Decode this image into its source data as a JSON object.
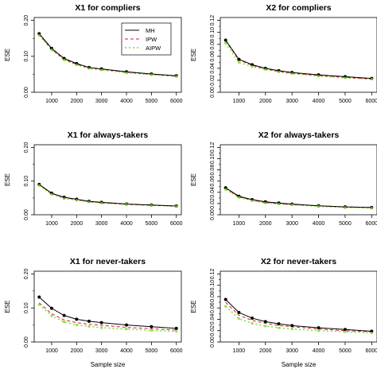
{
  "chart_data": [
    {
      "type": "line",
      "title": "X1 for compliers",
      "xlabel": "",
      "ylabel": "ESE",
      "x": [
        500,
        1000,
        1500,
        2000,
        2500,
        3000,
        4000,
        5000,
        6000
      ],
      "xticks": [
        1000,
        2000,
        3000,
        4000,
        5000,
        6000
      ],
      "ylim": [
        0,
        0.2
      ],
      "yticks": [
        "0.00",
        "0.10",
        "0.20"
      ],
      "series": [
        {
          "name": "MH",
          "values": [
            0.163,
            0.122,
            0.094,
            0.08,
            0.069,
            0.065,
            0.057,
            0.051,
            0.046
          ]
        },
        {
          "name": "IPW",
          "values": [
            0.161,
            0.12,
            0.092,
            0.078,
            0.068,
            0.064,
            0.056,
            0.05,
            0.045
          ]
        },
        {
          "name": "AIPW",
          "values": [
            0.158,
            0.118,
            0.09,
            0.076,
            0.066,
            0.062,
            0.054,
            0.049,
            0.044
          ]
        }
      ],
      "legend": [
        "MH",
        "IPW",
        "AIPW"
      ]
    },
    {
      "type": "line",
      "title": "X2 for compliers",
      "xlabel": "",
      "ylabel": "ESE",
      "x": [
        500,
        1000,
        1500,
        2000,
        2500,
        3000,
        4000,
        5000,
        6000
      ],
      "xticks": [
        1000,
        2000,
        3000,
        4000,
        5000,
        6000
      ],
      "ylim": [
        0,
        0.12
      ],
      "yticks": [
        "0.00",
        "0.02",
        "0.04",
        "0.06",
        "0.08",
        "0.10",
        "0.12"
      ],
      "series": [
        {
          "name": "MH",
          "values": [
            0.087,
            0.055,
            0.046,
            0.04,
            0.036,
            0.033,
            0.029,
            0.026,
            0.023
          ]
        },
        {
          "name": "IPW",
          "values": [
            0.086,
            0.054,
            0.045,
            0.039,
            0.035,
            0.032,
            0.028,
            0.025,
            0.022
          ]
        },
        {
          "name": "AIPW",
          "values": [
            0.082,
            0.05,
            0.043,
            0.038,
            0.034,
            0.031,
            0.027,
            0.024,
            0.022
          ]
        }
      ]
    },
    {
      "type": "line",
      "title": "X1 for always-takers",
      "xlabel": "",
      "ylabel": "ESE",
      "x": [
        500,
        1000,
        1500,
        2000,
        2500,
        3000,
        4000,
        5000,
        6000
      ],
      "xticks": [
        1000,
        2000,
        3000,
        4000,
        5000,
        6000
      ],
      "ylim": [
        0,
        0.2
      ],
      "yticks": [
        "0.00",
        "0.10",
        "0.20"
      ],
      "series": [
        {
          "name": "MH",
          "values": [
            0.09,
            0.064,
            0.052,
            0.046,
            0.04,
            0.037,
            0.032,
            0.029,
            0.026
          ]
        },
        {
          "name": "IPW",
          "values": [
            0.089,
            0.063,
            0.051,
            0.045,
            0.039,
            0.036,
            0.031,
            0.028,
            0.026
          ]
        },
        {
          "name": "AIPW",
          "values": [
            0.087,
            0.061,
            0.048,
            0.043,
            0.038,
            0.035,
            0.031,
            0.028,
            0.025
          ]
        }
      ]
    },
    {
      "type": "line",
      "title": "X2 for always-takers",
      "xlabel": "",
      "ylabel": "ESE",
      "x": [
        500,
        1000,
        1500,
        2000,
        2500,
        3000,
        4000,
        5000,
        6000
      ],
      "xticks": [
        1000,
        2000,
        3000,
        4000,
        5000,
        6000
      ],
      "ylim": [
        0,
        0.12
      ],
      "yticks": [
        "0.00",
        "0.02",
        "0.04",
        "0.06",
        "0.08",
        "0.10",
        "0.12"
      ],
      "series": [
        {
          "name": "MH",
          "values": [
            0.048,
            0.033,
            0.027,
            0.023,
            0.021,
            0.019,
            0.016,
            0.014,
            0.013
          ]
        },
        {
          "name": "IPW",
          "values": [
            0.047,
            0.032,
            0.026,
            0.022,
            0.02,
            0.018,
            0.016,
            0.014,
            0.013
          ]
        },
        {
          "name": "AIPW",
          "values": [
            0.045,
            0.031,
            0.025,
            0.021,
            0.019,
            0.018,
            0.015,
            0.013,
            0.012
          ]
        }
      ]
    },
    {
      "type": "line",
      "title": "X1 for never-takers",
      "xlabel": "Sample size",
      "ylabel": "ESE",
      "x": [
        500,
        1000,
        1500,
        2000,
        2500,
        3000,
        4000,
        5000,
        6000
      ],
      "xticks": [
        1000,
        2000,
        3000,
        4000,
        5000,
        6000
      ],
      "ylim": [
        0,
        0.2
      ],
      "yticks": [
        "0.00",
        "0.10",
        "0.20"
      ],
      "series": [
        {
          "name": "MH",
          "values": [
            0.132,
            0.099,
            0.078,
            0.067,
            0.061,
            0.057,
            0.05,
            0.045,
            0.04
          ]
        },
        {
          "name": "IPW",
          "values": [
            0.115,
            0.083,
            0.065,
            0.057,
            0.052,
            0.049,
            0.043,
            0.039,
            0.035
          ]
        },
        {
          "name": "AIPW",
          "values": [
            0.11,
            0.077,
            0.059,
            0.05,
            0.046,
            0.042,
            0.038,
            0.034,
            0.031
          ]
        }
      ]
    },
    {
      "type": "line",
      "title": "X2 for never-takers",
      "xlabel": "Sample size",
      "ylabel": "ESE",
      "x": [
        500,
        1000,
        1500,
        2000,
        2500,
        3000,
        4000,
        5000,
        6000
      ],
      "xticks": [
        1000,
        2000,
        3000,
        4000,
        5000,
        6000
      ],
      "ylim": [
        0,
        0.12
      ],
      "yticks": [
        "0.00",
        "0.02",
        "0.04",
        "0.06",
        "0.08",
        "0.10",
        "0.12"
      ],
      "series": [
        {
          "name": "MH",
          "values": [
            0.075,
            0.052,
            0.042,
            0.036,
            0.032,
            0.029,
            0.025,
            0.022,
            0.019
          ]
        },
        {
          "name": "IPW",
          "values": [
            0.07,
            0.047,
            0.038,
            0.033,
            0.029,
            0.027,
            0.023,
            0.02,
            0.018
          ]
        },
        {
          "name": "AIPW",
          "values": [
            0.063,
            0.041,
            0.033,
            0.028,
            0.025,
            0.023,
            0.02,
            0.018,
            0.016
          ]
        }
      ]
    }
  ],
  "series_styles": [
    {
      "color": "#000000",
      "dash": ""
    },
    {
      "color": "#d61a3c",
      "dash": "4,3"
    },
    {
      "color": "#7ddc1f",
      "dash": "2,3"
    }
  ],
  "marker_color": "#000000"
}
